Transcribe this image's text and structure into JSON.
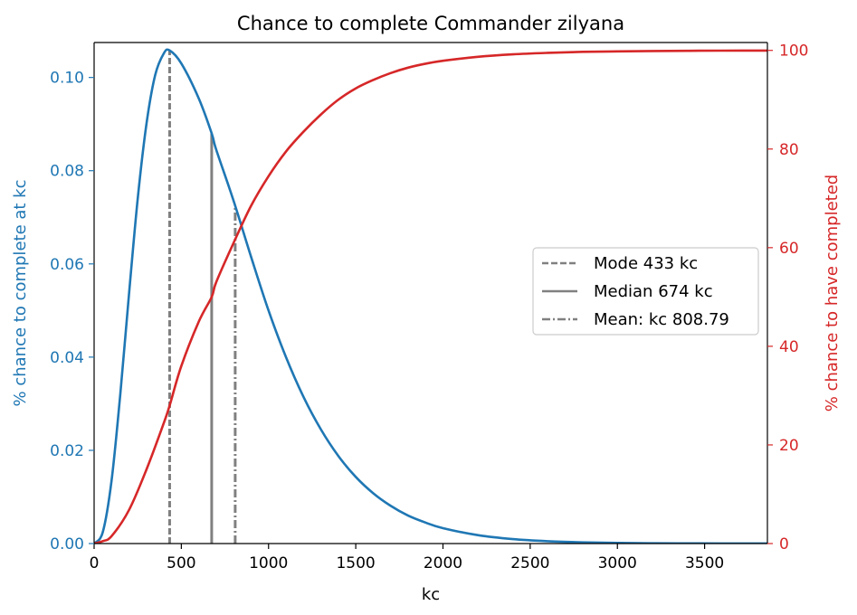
{
  "chart_data": {
    "type": "line",
    "title": "Chance to complete Commander zilyana",
    "xlabel": "kc",
    "ylabel_left": "% chance to complete at kc",
    "ylabel_right": "% chance to have completed",
    "xlim": [
      0,
      3860
    ],
    "ylim_left": [
      0,
      0.1075
    ],
    "ylim_right": [
      0,
      101.6
    ],
    "xticks": [
      0,
      500,
      1000,
      1500,
      2000,
      2500,
      3000,
      3500
    ],
    "yticks_left": [
      "0.00",
      "0.02",
      "0.04",
      "0.06",
      "0.08",
      "0.10"
    ],
    "yticks_left_values": [
      0,
      0.02,
      0.04,
      0.06,
      0.08,
      0.1
    ],
    "yticks_right": [
      0,
      20,
      40,
      60,
      80,
      100
    ],
    "grid": false,
    "legend_position": "center-right",
    "series": [
      {
        "axis": "left",
        "color": "#1f77b4",
        "x": [
          0,
          50,
          100,
          150,
          200,
          250,
          300,
          350,
          400,
          433,
          500,
          600,
          674,
          700,
          800,
          900,
          1000,
          1100,
          1200,
          1300,
          1400,
          1500,
          1600,
          1700,
          1800,
          1900,
          2000,
          2200,
          2400,
          2600,
          2800,
          3000,
          3200,
          3400,
          3600,
          3860
        ],
        "values": [
          0,
          0.0025,
          0.0135,
          0.032,
          0.0535,
          0.074,
          0.09,
          0.1005,
          0.1052,
          0.1058,
          0.103,
          0.0955,
          0.088,
          0.0845,
          0.0735,
          0.0615,
          0.05,
          0.04,
          0.0315,
          0.0245,
          0.0188,
          0.0143,
          0.0108,
          0.0081,
          0.006,
          0.0045,
          0.0033,
          0.0018,
          0.00095,
          0.0005,
          0.00026,
          0.00013,
          7e-05,
          3.5e-05,
          1.8e-05,
          6e-06
        ]
      },
      {
        "axis": "right",
        "color": "#d62728",
        "x": [
          0,
          50,
          100,
          200,
          300,
          400,
          433,
          500,
          600,
          674,
          700,
          800,
          900,
          1000,
          1100,
          1200,
          1300,
          1400,
          1500,
          1600,
          1700,
          1800,
          1900,
          2000,
          2200,
          2400,
          2600,
          2800,
          3000,
          3200,
          3400,
          3600,
          3860
        ],
        "values": [
          0,
          0.5,
          1.5,
          6.8,
          15.0,
          24.5,
          28.0,
          36.0,
          45.0,
          50.0,
          53.0,
          61.0,
          68.5,
          74.5,
          79.5,
          83.5,
          87.0,
          90.0,
          92.3,
          94.0,
          95.4,
          96.5,
          97.3,
          97.9,
          98.7,
          99.2,
          99.5,
          99.7,
          99.8,
          99.87,
          99.92,
          99.95,
          99.97
        ]
      }
    ],
    "vlines": [
      {
        "label": "Mode 433 kc",
        "x": 433,
        "y_top": 0.1058,
        "style": "dashed",
        "color": "#808080"
      },
      {
        "label": "Median 674 kc",
        "x": 674,
        "y_top": 0.088,
        "style": "solid",
        "color": "#808080"
      },
      {
        "label": "Mean: kc 808.79",
        "x": 808.79,
        "y_top": 0.0725,
        "style": "dashdot",
        "color": "#808080"
      }
    ],
    "colors": {
      "left_axis": "#1f77b4",
      "right_axis": "#d62728",
      "vlines": "#808080"
    }
  }
}
